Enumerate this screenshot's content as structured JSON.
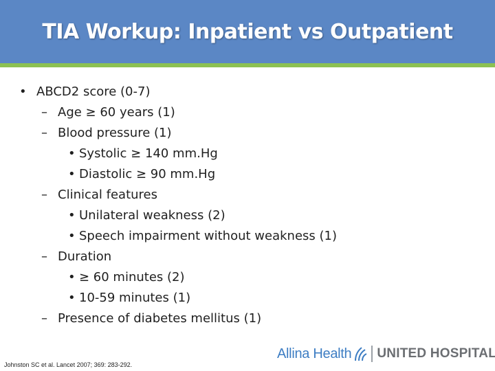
{
  "title": "TIA Workup: Inpatient vs Outpatient",
  "colors": {
    "title_bar": "#5b87c5",
    "title_rule": "#8cc152",
    "logo_blue": "#3d7dc3",
    "logo_gray": "#6b6e72"
  },
  "bullets": {
    "main": {
      "marker": "•",
      "text": "ABCD2 score (0-7)"
    },
    "age": {
      "marker": "–",
      "text": "Age ≥ 60 years (1)"
    },
    "bp": {
      "marker": "–",
      "text": "Blood pressure (1)"
    },
    "systolic": {
      "marker": "•",
      "text": "Systolic ≥ 140 mm.Hg"
    },
    "diastolic": {
      "marker": "•",
      "text": "Diastolic ≥ 90 mm.Hg"
    },
    "clinical": {
      "marker": "–",
      "text": "Clinical features"
    },
    "weakness": {
      "marker": "•",
      "text": "Unilateral weakness (2)"
    },
    "speech": {
      "marker": "•",
      "text": "Speech impairment without weakness (1)"
    },
    "duration": {
      "marker": "–",
      "text": "Duration"
    },
    "dur60": {
      "marker": "•",
      "text": "≥ 60 minutes (2)"
    },
    "dur10": {
      "marker": "•",
      "text": "10-59 minutes (1)"
    },
    "diabetes": {
      "marker": "–",
      "text": "Presence of diabetes mellitus (1)"
    }
  },
  "citation": "Johnston SC et al. Lancet 2007; 369: 283-292.",
  "logo": {
    "allina": "Allina Health",
    "hospital": "UNITED HOSPITAL",
    "mark_icon": "allina-leaf-icon"
  }
}
